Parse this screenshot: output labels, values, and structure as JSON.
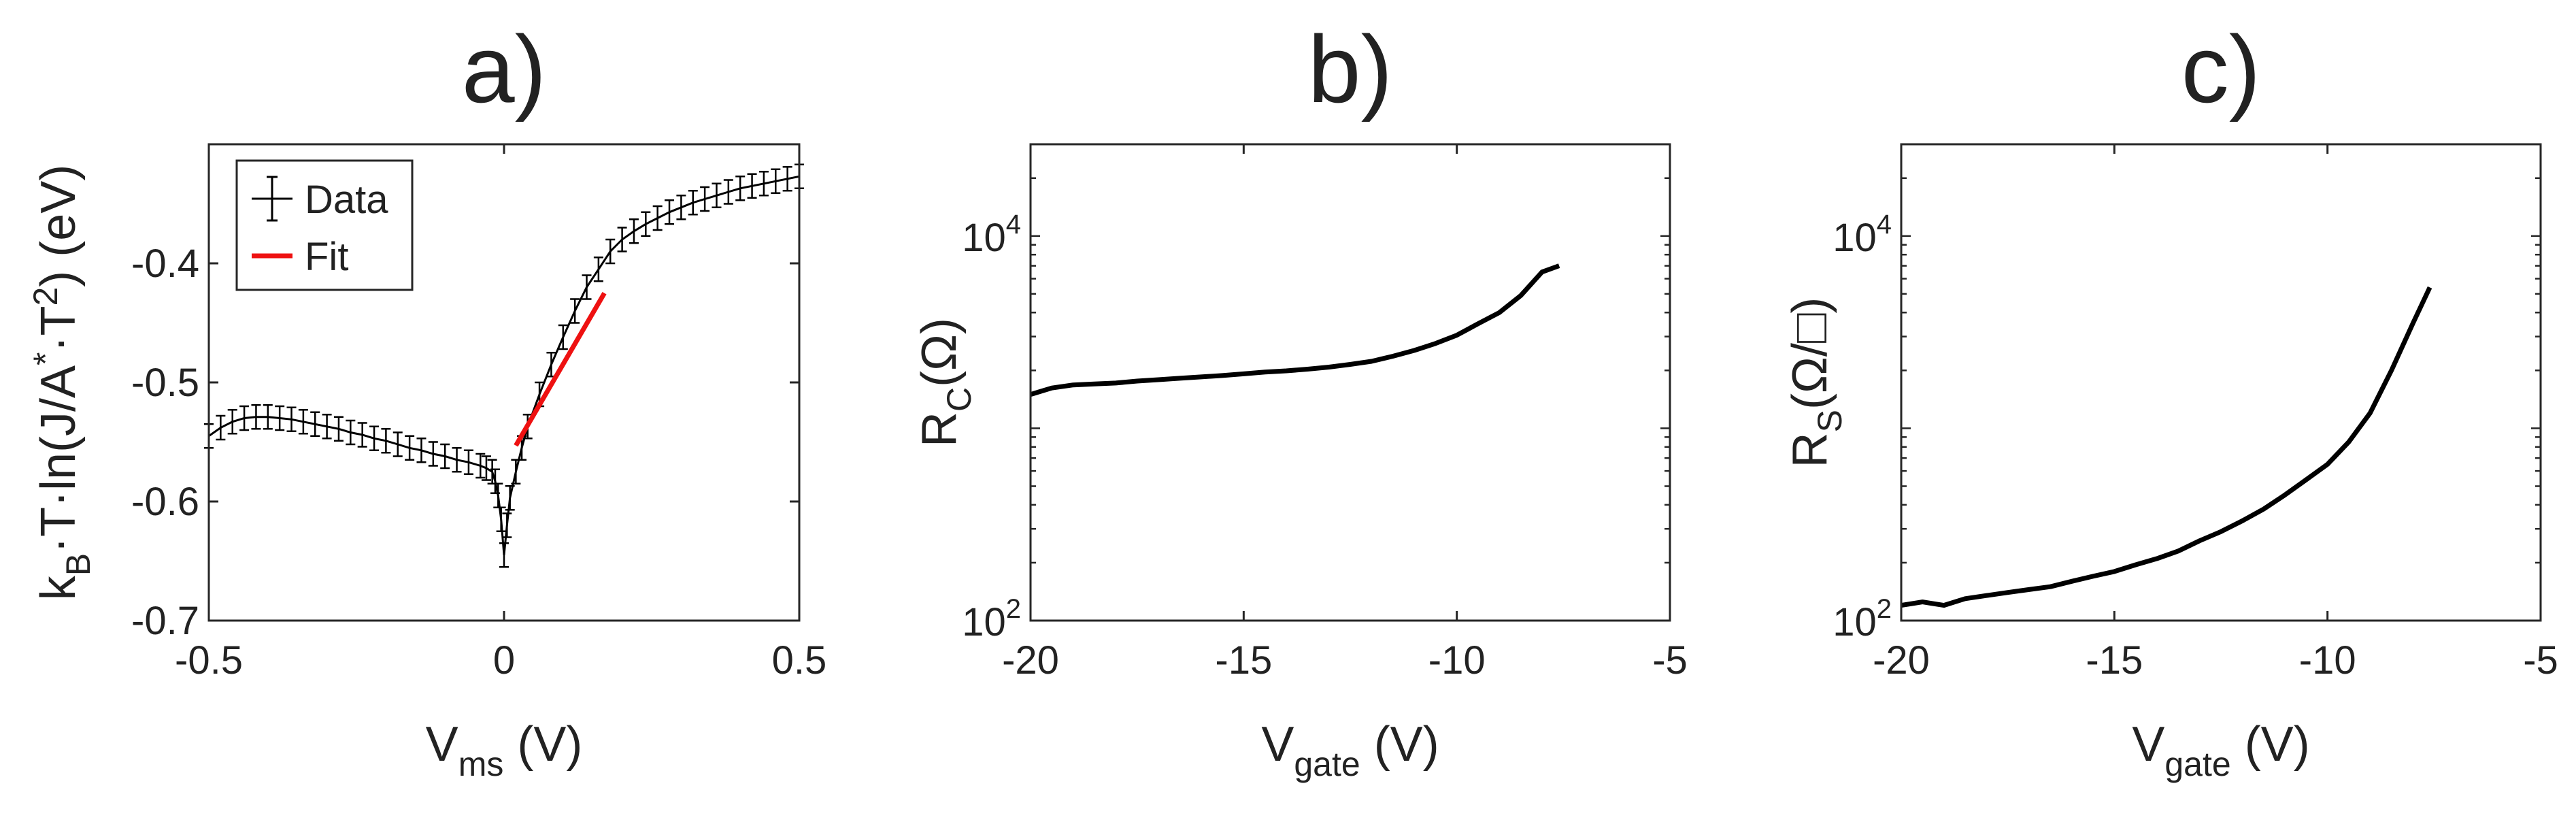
{
  "panels": [
    {
      "label": "a)",
      "xlabel": {
        "main": "V",
        "sub": "ms",
        "tail": " (V)"
      },
      "ylabel": {
        "parts": [
          {
            "t": "k"
          },
          {
            "t": "B",
            "sub": true
          },
          {
            "t": "·T·ln(J/A"
          },
          {
            "t": "*",
            "sup": true
          },
          {
            "t": "·T"
          },
          {
            "t": "2",
            "sup": true
          },
          {
            "t": ") (eV)"
          }
        ]
      },
      "xticks": [
        "-0.5",
        "0",
        "0.5"
      ],
      "yticks": [
        "-0.7",
        "-0.6",
        "-0.5",
        "-0.4"
      ],
      "legend": {
        "data_label": "Data",
        "fit_label": "Fit"
      }
    },
    {
      "label": "b)",
      "xlabel": {
        "main": "V",
        "sub": "gate",
        "tail": " (V)"
      },
      "ylabel": {
        "parts": [
          {
            "t": "R"
          },
          {
            "t": "C",
            "sub": true
          },
          {
            "t": "(Ω)"
          }
        ]
      },
      "xticks": [
        "-20",
        "-15",
        "-10",
        "-5"
      ],
      "yticks": [
        {
          "base": "10",
          "exp": "2"
        },
        {
          "base": "10",
          "exp": "4"
        }
      ]
    },
    {
      "label": "c)",
      "xlabel": {
        "main": "V",
        "sub": "gate",
        "tail": " (V)"
      },
      "ylabel": {
        "parts": [
          {
            "t": "R"
          },
          {
            "t": "S",
            "sub": true
          },
          {
            "t": "(Ω/□)"
          }
        ]
      },
      "xticks": [
        "-20",
        "-15",
        "-10",
        "-5"
      ],
      "yticks": [
        {
          "base": "10",
          "exp": "2"
        },
        {
          "base": "10",
          "exp": "4"
        }
      ]
    }
  ],
  "colors": {
    "data": "#000000",
    "fit": "#ee1111",
    "axis": "#262626",
    "text": "#222222"
  },
  "chart_data": [
    {
      "type": "scatter",
      "title": "a)",
      "xlabel": "Vms (V)",
      "ylabel": "kB·T·ln(J/A*·T2) (eV)",
      "xlim": [
        -0.5,
        0.5
      ],
      "ylim": [
        -0.7,
        -0.3
      ],
      "grid": false,
      "legend": "top-left",
      "series": [
        {
          "name": "Data",
          "style": "errorbar",
          "error": 0.01,
          "x": [
            -0.5,
            -0.48,
            -0.46,
            -0.44,
            -0.42,
            -0.4,
            -0.38,
            -0.36,
            -0.34,
            -0.32,
            -0.3,
            -0.28,
            -0.26,
            -0.24,
            -0.22,
            -0.2,
            -0.18,
            -0.16,
            -0.14,
            -0.12,
            -0.1,
            -0.08,
            -0.06,
            -0.04,
            -0.03,
            -0.02,
            -0.015,
            -0.01,
            -0.005,
            0.0,
            0.005,
            0.01,
            0.02,
            0.03,
            0.04,
            0.06,
            0.08,
            0.1,
            0.12,
            0.14,
            0.16,
            0.18,
            0.2,
            0.22,
            0.24,
            0.26,
            0.28,
            0.3,
            0.32,
            0.34,
            0.36,
            0.38,
            0.4,
            0.42,
            0.44,
            0.46,
            0.48,
            0.5
          ],
          "y": [
            -0.545,
            -0.538,
            -0.533,
            -0.53,
            -0.529,
            -0.529,
            -0.53,
            -0.531,
            -0.533,
            -0.535,
            -0.537,
            -0.539,
            -0.542,
            -0.544,
            -0.547,
            -0.549,
            -0.552,
            -0.555,
            -0.557,
            -0.56,
            -0.562,
            -0.565,
            -0.567,
            -0.57,
            -0.572,
            -0.575,
            -0.583,
            -0.595,
            -0.615,
            -0.645,
            -0.62,
            -0.597,
            -0.575,
            -0.555,
            -0.537,
            -0.51,
            -0.485,
            -0.462,
            -0.44,
            -0.42,
            -0.405,
            -0.39,
            -0.38,
            -0.373,
            -0.367,
            -0.362,
            -0.357,
            -0.353,
            -0.349,
            -0.346,
            -0.343,
            -0.34,
            -0.337,
            -0.335,
            -0.333,
            -0.331,
            -0.329,
            -0.327
          ]
        },
        {
          "name": "Fit",
          "style": "line",
          "x": [
            0.02,
            0.17
          ],
          "y": [
            -0.553,
            -0.425
          ]
        }
      ]
    },
    {
      "type": "line",
      "title": "b)",
      "xlabel": "Vgate (V)",
      "ylabel": "RC(Ω)",
      "xlim": [
        -20,
        -5
      ],
      "ylim": [
        100,
        30000
      ],
      "yscale": "log",
      "grid": false,
      "series": [
        {
          "x": [
            -20,
            -19.5,
            -19,
            -18.5,
            -18,
            -17.5,
            -17,
            -16.5,
            -16,
            -15.5,
            -15,
            -14.5,
            -14,
            -13.5,
            -13,
            -12.5,
            -12,
            -11.5,
            -11,
            -10.5,
            -10,
            -9.5,
            -9,
            -8.5,
            -8,
            -7.6
          ],
          "y": [
            1500,
            1620,
            1680,
            1700,
            1720,
            1760,
            1790,
            1820,
            1850,
            1880,
            1920,
            1960,
            1990,
            2030,
            2080,
            2150,
            2230,
            2370,
            2540,
            2760,
            3050,
            3500,
            4000,
            4900,
            6500,
            7000
          ]
        }
      ]
    },
    {
      "type": "line",
      "title": "c)",
      "xlabel": "Vgate (V)",
      "ylabel": "RS(Ω/□)",
      "xlim": [
        -20,
        -5
      ],
      "ylim": [
        100,
        30000
      ],
      "yscale": "log",
      "grid": false,
      "series": [
        {
          "x": [
            -20,
            -19.5,
            -19,
            -18.5,
            -18,
            -17.5,
            -17,
            -16.5,
            -16,
            -15.5,
            -15,
            -14.5,
            -14,
            -13.5,
            -13,
            -12.5,
            -12,
            -11.5,
            -11,
            -10.5,
            -10,
            -9.5,
            -9,
            -8.5,
            -8,
            -7.6
          ],
          "y": [
            120,
            125,
            120,
            130,
            135,
            140,
            145,
            150,
            160,
            170,
            180,
            195,
            210,
            230,
            260,
            290,
            330,
            380,
            450,
            540,
            650,
            850,
            1200,
            2000,
            3500,
            5400
          ]
        }
      ]
    }
  ]
}
